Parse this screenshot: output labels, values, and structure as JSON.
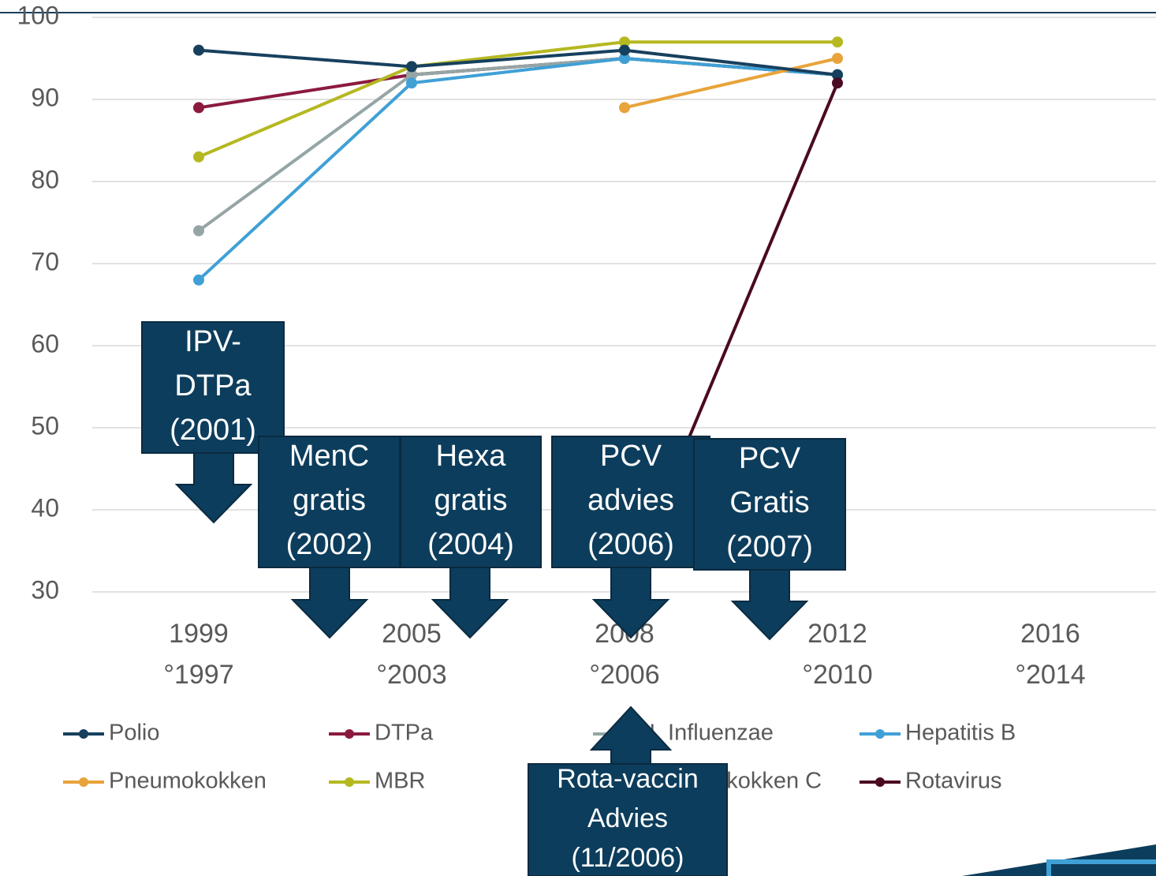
{
  "chart_data": {
    "type": "line",
    "categories": [
      [
        "1999",
        "°1997"
      ],
      [
        "2005",
        "°2003"
      ],
      [
        "2008",
        "°2006"
      ],
      [
        "2012",
        "°2010"
      ],
      [
        "2016",
        "°2014"
      ]
    ],
    "ylim": [
      30,
      100
    ],
    "yticks": [
      30,
      40,
      50,
      60,
      70,
      80,
      90,
      100
    ],
    "grid": true,
    "series": [
      {
        "name": "Meningokokken C",
        "color": "#6b8e3a",
        "values": [
          null,
          93,
          95,
          93,
          null
        ]
      },
      {
        "name": "DTPa",
        "color": "#8b1a3e",
        "values": [
          89,
          93,
          95,
          93,
          null
        ]
      },
      {
        "name": "H. Influenzae",
        "color": "#95a5a6",
        "values": [
          74,
          93,
          95,
          93,
          null
        ]
      },
      {
        "name": "Hepatitis B",
        "color": "#3fa0d6",
        "values": [
          68,
          92,
          95,
          93,
          null
        ]
      },
      {
        "name": "Pneumokokken",
        "color": "#e8a33a",
        "values": [
          null,
          null,
          89,
          95,
          null
        ]
      },
      {
        "name": "MBR",
        "color": "#b5b820",
        "values": [
          83,
          94,
          97,
          97,
          null
        ]
      },
      {
        "name": "Polio",
        "color": "#17405e",
        "values": [
          96,
          94,
          96,
          93,
          null
        ]
      },
      {
        "name": "Rotavirus",
        "color": "#4a0a22",
        "values": [
          null,
          null,
          30,
          92,
          null
        ]
      }
    ],
    "legend_order": [
      "Polio",
      "DTPa",
      "H. Influenzae",
      "Hepatitis B",
      "Pneumokokken",
      "MBR",
      "Meningokokken C",
      "Rotavirus"
    ],
    "annotations": [
      {
        "text": [
          "IPV-",
          "DTPa",
          "(2001)"
        ]
      },
      {
        "text": [
          "MenC",
          "gratis",
          "(2002)"
        ]
      },
      {
        "text": [
          "Hexa",
          "gratis",
          "(2004)"
        ]
      },
      {
        "text": [
          "PCV",
          "advies",
          "(2006)"
        ]
      },
      {
        "text": [
          "PCV",
          "Gratis",
          "(2007)"
        ]
      },
      {
        "text": [
          "Rota-vaccin",
          "Advies",
          "(11/2006)"
        ]
      }
    ]
  }
}
